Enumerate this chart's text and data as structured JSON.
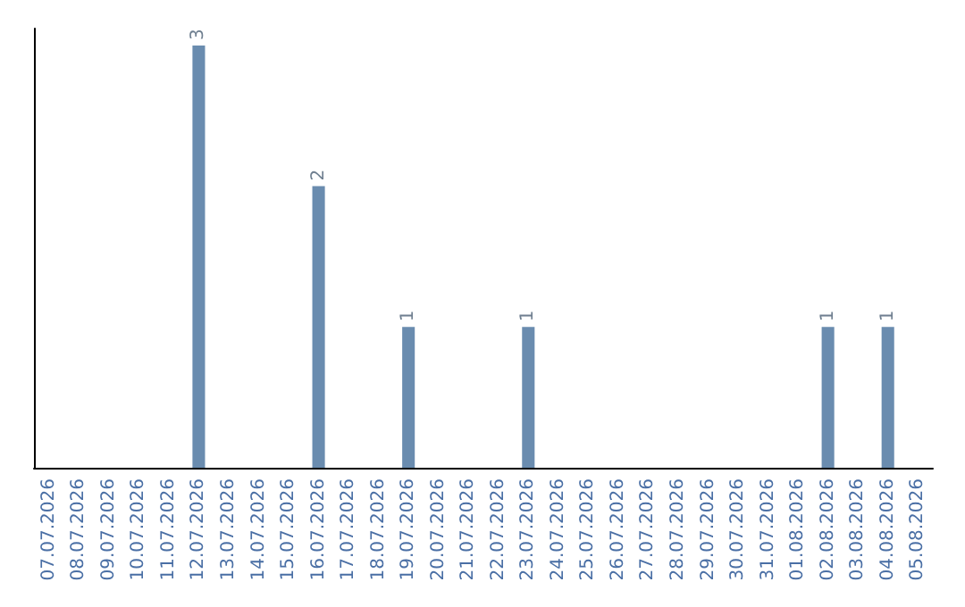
{
  "chart_data": {
    "type": "bar",
    "categories": [
      "07.07.2026",
      "08.07.2026",
      "09.07.2026",
      "10.07.2026",
      "11.07.2026",
      "12.07.2026",
      "13.07.2026",
      "14.07.2026",
      "15.07.2026",
      "16.07.2026",
      "17.07.2026",
      "18.07.2026",
      "19.07.2026",
      "20.07.2026",
      "21.07.2026",
      "22.07.2026",
      "23.07.2026",
      "24.07.2026",
      "25.07.2026",
      "26.07.2026",
      "27.07.2026",
      "28.07.2026",
      "29.07.2026",
      "30.07.2026",
      "31.07.2026",
      "01.08.2026",
      "02.08.2026",
      "03.08.2026",
      "04.08.2026",
      "05.08.2026"
    ],
    "values": [
      0,
      0,
      0,
      0,
      0,
      3,
      0,
      0,
      0,
      2,
      0,
      0,
      1,
      0,
      0,
      0,
      1,
      0,
      0,
      0,
      0,
      0,
      0,
      0,
      0,
      0,
      1,
      0,
      1,
      0
    ],
    "value_labels": [
      null,
      null,
      null,
      null,
      null,
      "3",
      null,
      null,
      null,
      "2",
      null,
      null,
      "1",
      null,
      null,
      null,
      "1",
      null,
      null,
      null,
      null,
      null,
      null,
      null,
      null,
      null,
      "1",
      null,
      "1",
      null
    ],
    "color": "#6a8caf",
    "ylim": [
      0,
      3.12
    ],
    "tick_labels": "x",
    "grid": false
  }
}
